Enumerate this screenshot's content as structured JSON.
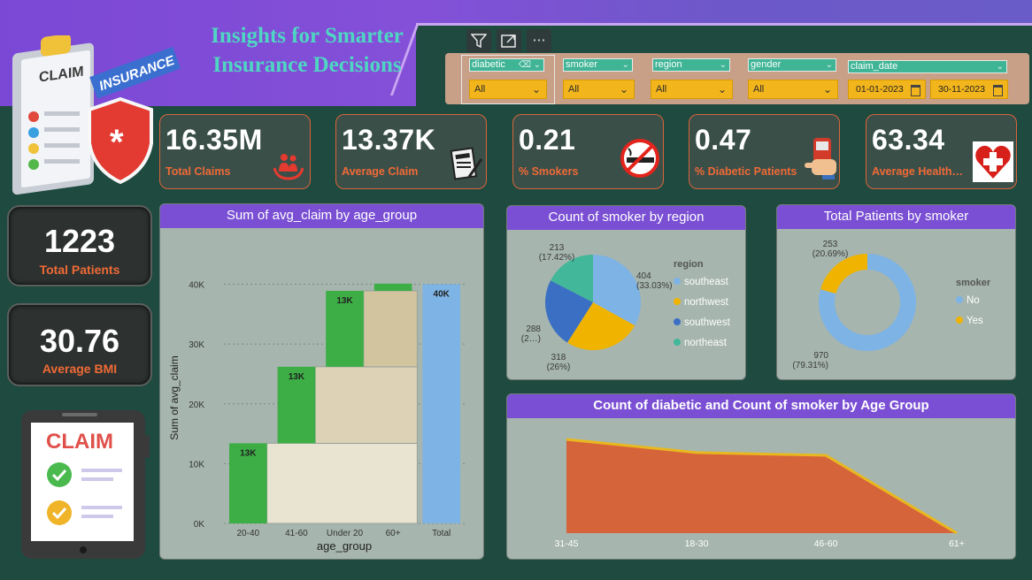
{
  "header": {
    "title_line1": "Insights for Smarter",
    "title_line2": "Insurance Decisions",
    "icon_claim_text": "CLAIM",
    "icon_insurance_text": "INSURANCE",
    "phone_claim_text": "CLAIM"
  },
  "toolbar": {
    "filter_icon": "filter-icon",
    "focus_icon": "focus-mode-icon",
    "more_icon": "more-options-icon"
  },
  "slicers": [
    {
      "field": "diabetic",
      "value": "All"
    },
    {
      "field": "smoker",
      "value": "All"
    },
    {
      "field": "region",
      "value": "All"
    },
    {
      "field": "gender",
      "value": "All"
    }
  ],
  "date_slicer": {
    "field": "claim_date",
    "start": "01-01-2023",
    "end": "30-11-2023"
  },
  "kpis": [
    {
      "value": "16.35M",
      "label": "Total Claims",
      "icon": "family-care-icon"
    },
    {
      "value": "13.37K",
      "label": "Average Claim",
      "icon": "claim-document-icon"
    },
    {
      "value": "0.21",
      "label": "% Smokers",
      "icon": "no-smoking-icon"
    },
    {
      "value": "0.47",
      "label": "% Diabetic Patients",
      "icon": "glucose-meter-icon"
    },
    {
      "value": "63.34",
      "label": "Average Health…",
      "icon": "heart-health-icon"
    }
  ],
  "side_kpis": [
    {
      "value": "1223",
      "label": "Total Patients"
    },
    {
      "value": "30.76",
      "label": "Average BMI"
    }
  ],
  "colors": {
    "accent": "#7a4fd4",
    "kpi_label": "#ef6a36",
    "green": "#3cae45",
    "total": "#7eb3e5",
    "orange_area": "#d6643a",
    "gold": "#f0b400"
  },
  "chart_data": [
    {
      "type": "bar",
      "title": "Sum of avg_claim by age_group",
      "xlabel": "age_group",
      "ylabel": "Sum of avg_claim",
      "categories": [
        "20-40",
        "41-60",
        "Under 20",
        "60+",
        "Total"
      ],
      "values": [
        13400,
        12800,
        12700,
        1200,
        40000
      ],
      "data_labels": [
        "13K",
        "13K",
        "13K",
        "",
        "40K"
      ],
      "yticks": [
        "0K",
        "10K",
        "20K",
        "30K",
        "40K"
      ],
      "ylim": [
        0,
        42000
      ],
      "grid": true
    },
    {
      "type": "pie",
      "title": "Count of smoker by region",
      "legend_title": "region",
      "legend_position": "right",
      "slices": [
        {
          "name": "southeast",
          "value": 404,
          "label": "404 (33.03%)",
          "color": "#7eb3e5"
        },
        {
          "name": "northwest",
          "value": 318,
          "label": "318 (26%)",
          "color": "#f0b400"
        },
        {
          "name": "southwest",
          "value": 288,
          "label": "288 (2…)",
          "color": "#3a6fc4"
        },
        {
          "name": "northeast",
          "value": 213,
          "label": "213 (17.42%)",
          "color": "#42b79a"
        }
      ]
    },
    {
      "type": "pie",
      "title": "Total Patients by smoker",
      "legend_title": "smoker",
      "legend_position": "right",
      "slices": [
        {
          "name": "No",
          "value": 970,
          "label": "970 (79.31%)",
          "color": "#7eb3e5"
        },
        {
          "name": "Yes",
          "value": 253,
          "label": "253 (20.69%)",
          "color": "#f0b400"
        }
      ]
    },
    {
      "type": "area",
      "title": "Count of diabetic and Count of smoker by Age Group",
      "categories": [
        "31-45",
        "18-30",
        "46-60",
        "61+"
      ],
      "series": [
        {
          "values": [
            100,
            86,
            83,
            0
          ],
          "color": "#d6643a",
          "line_color": "#e8b820"
        }
      ]
    }
  ]
}
